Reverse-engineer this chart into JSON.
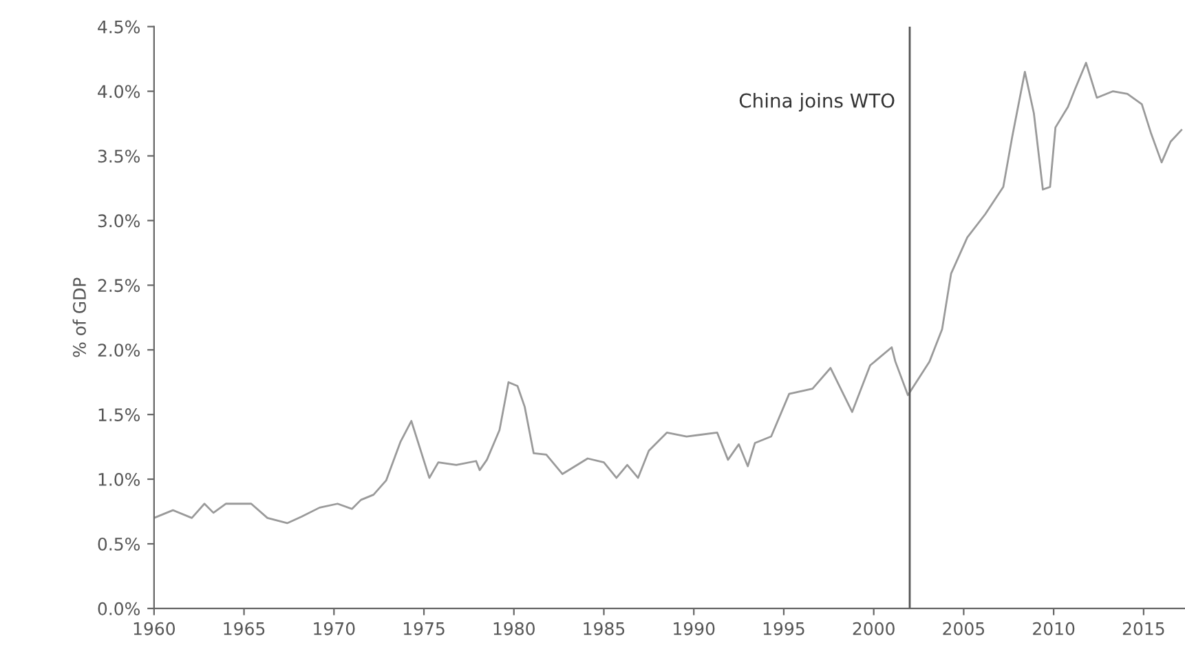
{
  "chart_data": {
    "type": "line",
    "ylabel": "% of GDP",
    "x": [
      1960,
      1961.05,
      1962.1,
      1962.8,
      1963.3,
      1964.0,
      1965.4,
      1966.3,
      1967.4,
      1968.2,
      1969.2,
      1970.2,
      1971.0,
      1971.5,
      1972.2,
      1972.9,
      1973.7,
      1974.3,
      1975.3,
      1975.8,
      1976.8,
      1977.9,
      1978.1,
      1978.5,
      1979.2,
      1979.7,
      1980.2,
      1980.6,
      1981.1,
      1981.8,
      1982.7,
      1984.1,
      1985.0,
      1985.7,
      1986.3,
      1986.9,
      1987.5,
      1988.5,
      1989.6,
      1991.3,
      1991.9,
      1992.5,
      1993.0,
      1993.4,
      1994.3,
      1995.3,
      1996.6,
      1997.6,
      1998.8,
      1999.8,
      2001.0,
      2001.2,
      2001.9,
      2003.1,
      2003.8,
      2004.3,
      2005.2,
      2006.2,
      2007.2,
      2007.7,
      2008.4,
      2008.9,
      2009.4,
      2009.8,
      2010.1,
      2010.8,
      2011.2,
      2011.8,
      2012.4,
      2013.3,
      2014.1,
      2014.9,
      2015.4,
      2016.0,
      2016.5,
      2017.1
    ],
    "series": [
      {
        "color": "#9a9a9a",
        "values": [
          0.7,
          0.76,
          0.7,
          0.81,
          0.74,
          0.81,
          0.81,
          0.7,
          0.66,
          0.71,
          0.78,
          0.81,
          0.77,
          0.84,
          0.88,
          0.99,
          1.29,
          1.45,
          1.01,
          1.13,
          1.11,
          1.14,
          1.07,
          1.15,
          1.38,
          1.75,
          1.72,
          1.56,
          1.2,
          1.19,
          1.04,
          1.16,
          1.13,
          1.01,
          1.11,
          1.01,
          1.22,
          1.36,
          1.33,
          1.36,
          1.15,
          1.27,
          1.1,
          1.28,
          1.33,
          1.66,
          1.7,
          1.86,
          1.52,
          1.88,
          2.02,
          1.91,
          1.65,
          1.91,
          2.16,
          2.59,
          2.87,
          3.05,
          3.26,
          3.65,
          4.15,
          3.83,
          3.24,
          3.26,
          3.72,
          3.88,
          4.02,
          4.22,
          3.95,
          4.0,
          3.98,
          3.9,
          3.68,
          3.45,
          3.61,
          3.7
        ]
      }
    ],
    "xlim": [
      1960,
      2017.3
    ],
    "xticks": [
      1960,
      1965,
      1970,
      1975,
      1980,
      1985,
      1990,
      1995,
      2000,
      2005,
      2010,
      2015
    ],
    "ylim": [
      0,
      4.5
    ],
    "yticks": [
      {
        "value": 0,
        "label": "0.0%"
      },
      {
        "value": 0.5,
        "label": "0.5%"
      },
      {
        "value": 1.0,
        "label": "1.0%"
      },
      {
        "value": 1.5,
        "label": "1.5%"
      },
      {
        "value": 2.0,
        "label": "2.0%"
      },
      {
        "value": 2.5,
        "label": "2.5%"
      },
      {
        "value": 3.0,
        "label": "3.0%"
      },
      {
        "value": 3.5,
        "label": "3.5%"
      },
      {
        "value": 4.0,
        "label": "4.0%"
      },
      {
        "value": 4.5,
        "label": "4.5%"
      }
    ],
    "ref_lines": [
      {
        "axis": "x",
        "value": 2002,
        "label": "China joins WTO",
        "color": "#555555"
      }
    ],
    "grid": false,
    "legend": false
  }
}
